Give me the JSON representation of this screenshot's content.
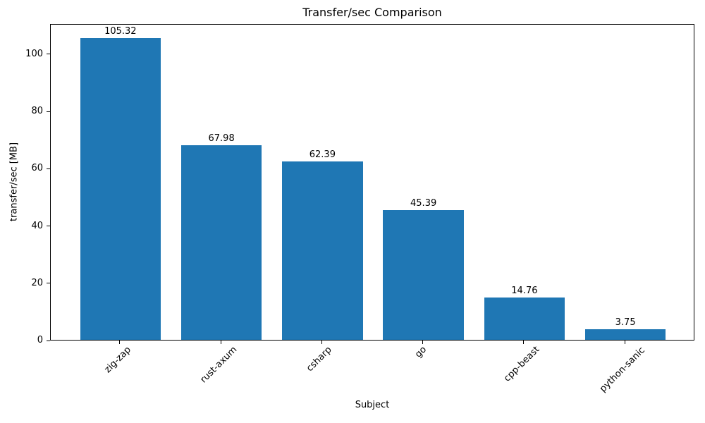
{
  "chart_data": {
    "type": "bar",
    "title": "Transfer/sec Comparison",
    "xlabel": "Subject",
    "ylabel": "transfer/sec [MB]",
    "categories": [
      "zig-zap",
      "rust-axum",
      "csharp",
      "go",
      "cpp-beast",
      "python-sanic"
    ],
    "values": [
      105.32,
      67.98,
      62.39,
      45.39,
      14.76,
      3.75
    ],
    "value_labels": [
      "105.32",
      "67.98",
      "62.39",
      "45.39",
      "14.76",
      "3.75"
    ],
    "yticks": [
      0,
      20,
      40,
      60,
      80,
      100
    ],
    "ylim": [
      0,
      110.59
    ],
    "grid": false,
    "legend": false,
    "x_tick_rotation_deg": 45,
    "bar_color": "#1f77b4",
    "text_color": "#000000",
    "spine_color": "#000000",
    "background_color": "#ffffff"
  }
}
